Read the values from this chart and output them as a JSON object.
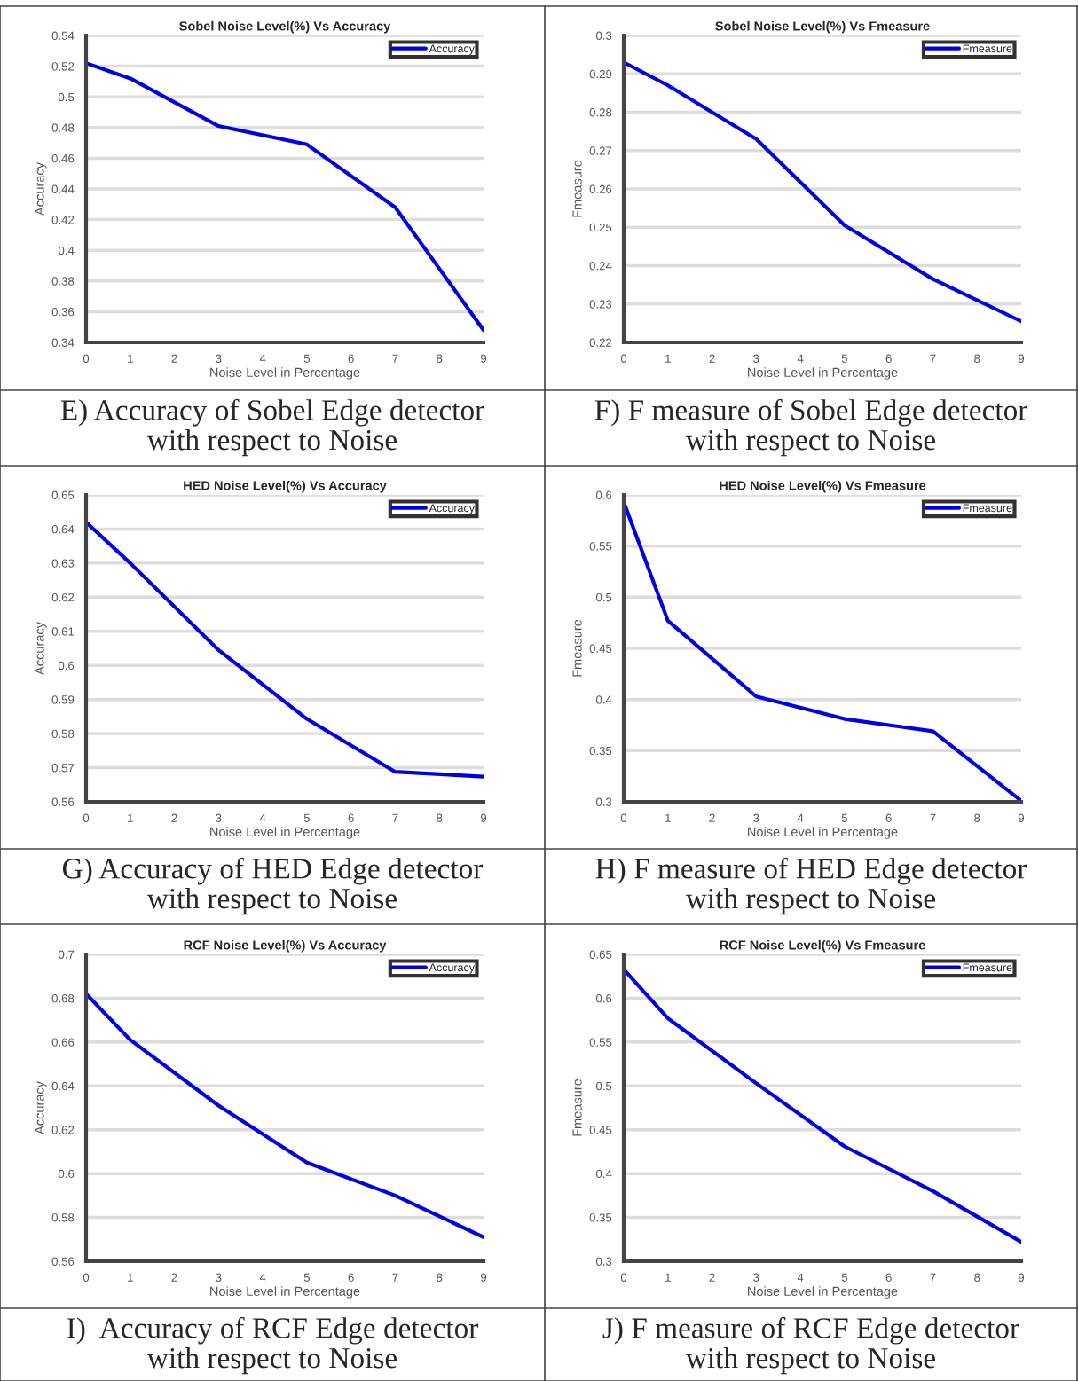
{
  "chart_data": [
    {
      "type": "line",
      "title": "Sobel Noise Level(%) Vs Accuracy",
      "xlabel": "Noise Level in Percentage",
      "ylabel": "Accuracy",
      "x": [
        0,
        1,
        3,
        5,
        7,
        9
      ],
      "series": [
        {
          "name": "Accuracy",
          "color": "#0000e6",
          "values": [
            0.522,
            0.512,
            0.481,
            0.469,
            0.428,
            0.348
          ]
        }
      ],
      "xlim": [
        0,
        9
      ],
      "xticks": [
        0,
        1,
        2,
        3,
        4,
        5,
        6,
        7,
        8,
        9
      ],
      "ylim": [
        0.34,
        0.54
      ],
      "yticks": [
        0.34,
        0.36,
        0.38,
        0.4,
        0.42,
        0.44,
        0.46,
        0.48,
        0.5,
        0.52,
        0.54
      ],
      "grid": "y",
      "legend": "top right",
      "marker": "none",
      "line_style": "solid",
      "annotations": [
        "E) Accuracy of Sobel Edge detector\nwith respect to Noise"
      ]
    },
    {
      "type": "line",
      "title": "Sobel Noise Level(%) Vs Fmeasure",
      "xlabel": "Noise Level in Percentage",
      "ylabel": "Fmeasure",
      "x": [
        0,
        1,
        3,
        5,
        7,
        9
      ],
      "series": [
        {
          "name": "Fmeasure",
          "color": "#0000e6",
          "values": [
            0.293,
            0.287,
            0.273,
            0.2505,
            0.2365,
            0.2255
          ]
        }
      ],
      "xlim": [
        0,
        9
      ],
      "xticks": [
        0,
        1,
        2,
        3,
        4,
        5,
        6,
        7,
        8,
        9
      ],
      "ylim": [
        0.22,
        0.3
      ],
      "yticks": [
        0.22,
        0.23,
        0.24,
        0.25,
        0.26,
        0.27,
        0.28,
        0.29,
        0.3
      ],
      "grid": "y",
      "legend": "top right",
      "marker": "none",
      "line_style": "solid",
      "annotations": [
        "F) F measure of Sobel Edge detector\nwith respect to Noise"
      ]
    },
    {
      "type": "line",
      "title": "HED Noise Level(%) Vs Accuracy",
      "xlabel": "Noise Level in Percentage",
      "ylabel": "Accuracy",
      "x": [
        0,
        1,
        3,
        5,
        7,
        9
      ],
      "series": [
        {
          "name": "Accuracy",
          "color": "#0000e6",
          "values": [
            0.642,
            0.63,
            0.6045,
            0.5843,
            0.5688,
            0.5674
          ]
        }
      ],
      "xlim": [
        0,
        9
      ],
      "xticks": [
        0,
        1,
        2,
        3,
        4,
        5,
        6,
        7,
        8,
        9
      ],
      "ylim": [
        0.56,
        0.65
      ],
      "yticks": [
        0.56,
        0.57,
        0.58,
        0.59,
        0.6,
        0.61,
        0.62,
        0.63,
        0.64,
        0.65
      ],
      "grid": "y",
      "legend": "top right",
      "marker": "none",
      "line_style": "solid",
      "annotations": [
        "G) Accuracy of HED Edge detector\nwith respect to Noise"
      ]
    },
    {
      "type": "line",
      "title": "HED Noise Level(%) Vs Fmeasure",
      "xlabel": "Noise Level in Percentage",
      "ylabel": "Fmeasure",
      "x": [
        0,
        1,
        3,
        5,
        7,
        9
      ],
      "series": [
        {
          "name": "Fmeasure",
          "color": "#0000e6",
          "values": [
            0.593,
            0.477,
            0.403,
            0.381,
            0.369,
            0.301
          ]
        }
      ],
      "xlim": [
        0,
        9
      ],
      "xticks": [
        0,
        1,
        2,
        3,
        4,
        5,
        6,
        7,
        8,
        9
      ],
      "ylim": [
        0.3,
        0.6
      ],
      "yticks": [
        0.3,
        0.35,
        0.4,
        0.45,
        0.5,
        0.55,
        0.6
      ],
      "grid": "y",
      "legend": "top right",
      "marker": "none",
      "line_style": "solid",
      "annotations": [
        "H) F measure of HED Edge detector\nwith respect to Noise"
      ]
    },
    {
      "type": "line",
      "title": "RCF Noise Level(%) Vs Accuracy",
      "xlabel": "Noise Level in Percentage",
      "ylabel": "Accuracy",
      "x": [
        0,
        1,
        3,
        5,
        7,
        9
      ],
      "series": [
        {
          "name": "Accuracy",
          "color": "#0000e6",
          "values": [
            0.682,
            0.661,
            0.631,
            0.605,
            0.59,
            0.571
          ]
        }
      ],
      "xlim": [
        0,
        9
      ],
      "xticks": [
        0,
        1,
        2,
        3,
        4,
        5,
        6,
        7,
        8,
        9
      ],
      "ylim": [
        0.56,
        0.7
      ],
      "yticks": [
        0.56,
        0.58,
        0.6,
        0.62,
        0.64,
        0.66,
        0.68,
        0.7
      ],
      "grid": "y",
      "legend": "top right",
      "marker": "none",
      "line_style": "solid",
      "annotations": [
        "I)  Accuracy of RCF Edge detector\nwith respect to Noise"
      ]
    },
    {
      "type": "line",
      "title": "RCF Noise Level(%) Vs Fmeasure",
      "xlabel": "Noise Level in Percentage",
      "ylabel": "Fmeasure",
      "x": [
        0,
        1,
        3,
        5,
        7,
        9
      ],
      "series": [
        {
          "name": "Fmeasure",
          "color": "#0000e6",
          "values": [
            0.633,
            0.577,
            0.503,
            0.431,
            0.38,
            0.322
          ]
        }
      ],
      "xlim": [
        0,
        9
      ],
      "xticks": [
        0,
        1,
        2,
        3,
        4,
        5,
        6,
        7,
        8,
        9
      ],
      "ylim": [
        0.3,
        0.65
      ],
      "yticks": [
        0.3,
        0.35,
        0.4,
        0.45,
        0.5,
        0.55,
        0.6,
        0.65
      ],
      "grid": "y",
      "legend": "top right",
      "marker": "none",
      "line_style": "solid",
      "annotations": [
        "J) F measure of RCF Edge detector\nwith respect to Noise"
      ]
    }
  ]
}
